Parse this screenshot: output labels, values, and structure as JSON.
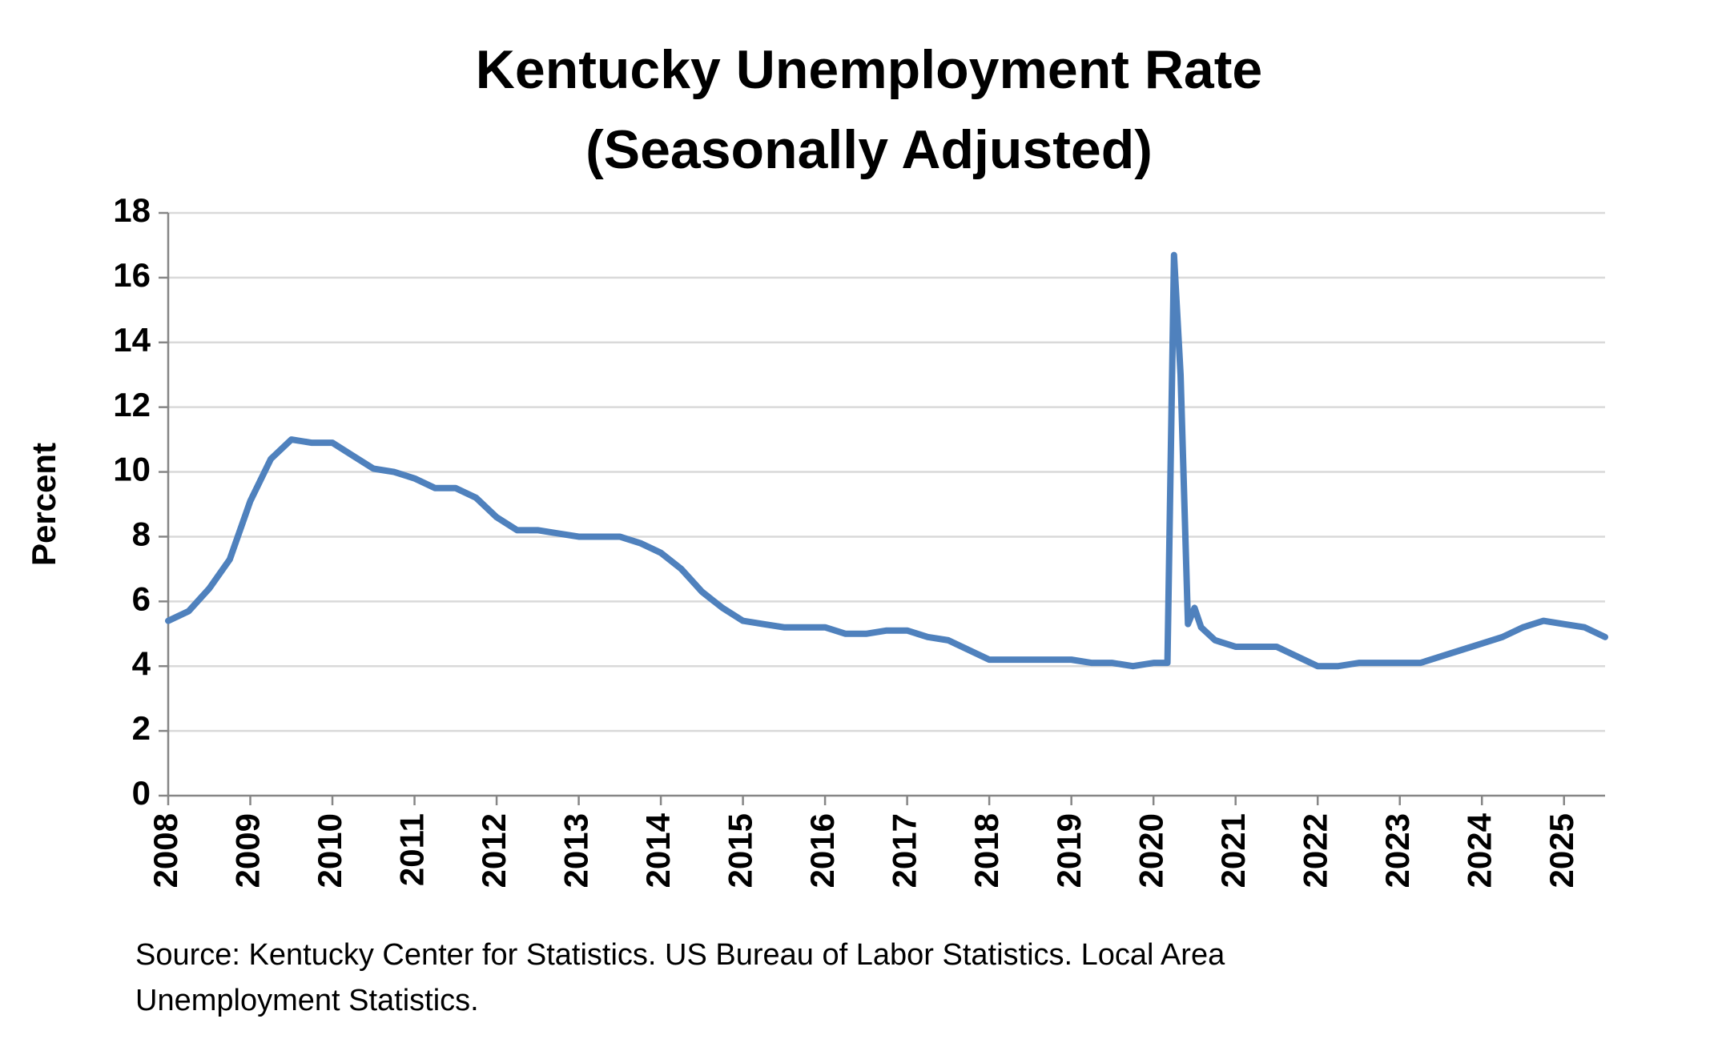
{
  "chart_data": {
    "type": "line",
    "title": "Kentucky Unemployment Rate",
    "subtitle": "(Seasonally Adjusted)",
    "y_label": "Percent",
    "source": "Source: Kentucky Center for Statistics. US Bureau of Labor Statistics. Local Area Unemployment Statistics.",
    "color": "#4f81bd",
    "grid": true,
    "xlim": [
      2008,
      2025.5
    ],
    "xticks": [
      2008,
      2009,
      2010,
      2011,
      2012,
      2013,
      2014,
      2015,
      2016,
      2017,
      2018,
      2019,
      2020,
      2021,
      2022,
      2023,
      2024,
      2025
    ],
    "ylim": [
      0,
      18
    ],
    "yticks": [
      0,
      2,
      4,
      6,
      8,
      10,
      12,
      14,
      16,
      18
    ],
    "x": [
      2008,
      2008.25,
      2008.5,
      2008.75,
      2009,
      2009.25,
      2009.5,
      2009.75,
      2010,
      2010.25,
      2010.5,
      2010.75,
      2011,
      2011.25,
      2011.5,
      2011.75,
      2012,
      2012.25,
      2012.5,
      2012.75,
      2013,
      2013.25,
      2013.5,
      2013.75,
      2014,
      2014.25,
      2014.5,
      2014.75,
      2015,
      2015.25,
      2015.5,
      2015.75,
      2016,
      2016.25,
      2016.5,
      2016.75,
      2017,
      2017.25,
      2017.5,
      2017.75,
      2018,
      2018.25,
      2018.5,
      2018.75,
      2019,
      2019.25,
      2019.5,
      2019.75,
      2020,
      2020.17,
      2020.25,
      2020.33,
      2020.42,
      2020.5,
      2020.58,
      2020.75,
      2021,
      2021.25,
      2021.5,
      2021.75,
      2022,
      2022.25,
      2022.5,
      2022.75,
      2023,
      2023.25,
      2023.5,
      2023.75,
      2024,
      2024.25,
      2024.5,
      2024.75,
      2025,
      2025.25,
      2025.5
    ],
    "values": [
      5.4,
      5.7,
      6.4,
      7.3,
      9.1,
      10.4,
      11.0,
      10.9,
      10.9,
      10.5,
      10.1,
      10.0,
      9.8,
      9.5,
      9.5,
      9.2,
      8.6,
      8.2,
      8.2,
      8.1,
      8.0,
      8.0,
      8.0,
      7.8,
      7.5,
      7.0,
      6.3,
      5.8,
      5.4,
      5.3,
      5.2,
      5.2,
      5.2,
      5.0,
      5.0,
      5.1,
      5.1,
      4.9,
      4.8,
      4.5,
      4.2,
      4.2,
      4.2,
      4.2,
      4.2,
      4.1,
      4.1,
      4.0,
      4.1,
      4.1,
      16.7,
      13.0,
      5.3,
      5.8,
      5.2,
      4.8,
      4.6,
      4.6,
      4.6,
      4.3,
      4.0,
      4.0,
      4.1,
      4.1,
      4.1,
      4.1,
      4.3,
      4.5,
      4.7,
      4.9,
      5.2,
      5.4,
      5.3,
      5.2,
      4.9
    ]
  }
}
